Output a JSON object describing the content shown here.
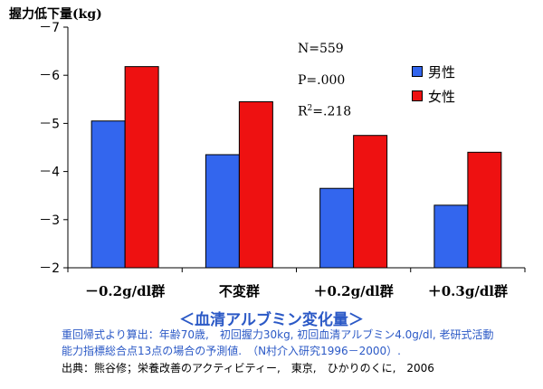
{
  "chart_data": {
    "type": "bar",
    "ylabel": "握力低下量(kg)",
    "xlabel": "＜血清アルブミン変化量＞",
    "categories": [
      "－0.2g/dl群",
      "不変群",
      "＋0.2g/dl群",
      "＋0.3g/dl群"
    ],
    "series": [
      {
        "name": "男性",
        "color": "#3366ee",
        "values": [
          -5.05,
          -4.35,
          -3.65,
          -3.3
        ]
      },
      {
        "name": "女性",
        "color": "#ee1111",
        "values": [
          -6.18,
          -5.45,
          -4.75,
          -4.4
        ]
      }
    ],
    "ylim": [
      -2,
      -7
    ],
    "yticks": [
      "－2",
      "－3",
      "－4",
      "－5",
      "－6",
      "－7"
    ],
    "ytick_values": [
      -2,
      -3,
      -4,
      -5,
      -6,
      -7
    ],
    "legend_position": "top-right",
    "grid": false
  },
  "stats": {
    "n": "N=559",
    "p": "P=.000",
    "r2_prefix": "R",
    "r2_sup": "2",
    "r2_suffix": "=.218"
  },
  "notes": {
    "line1": "重回帰式より算出：年齢70歳,　初回握力30kg, 初回血清アルブミン4.0g/dl, 老研式活動",
    "line2": "能力指標総合点13点の場合の予測値.　（N村介入研究1996－2000）.",
    "line3": "出典：熊谷修；栄養改善のアクティビティー,　東京,　ひかりのくに,　2006"
  }
}
